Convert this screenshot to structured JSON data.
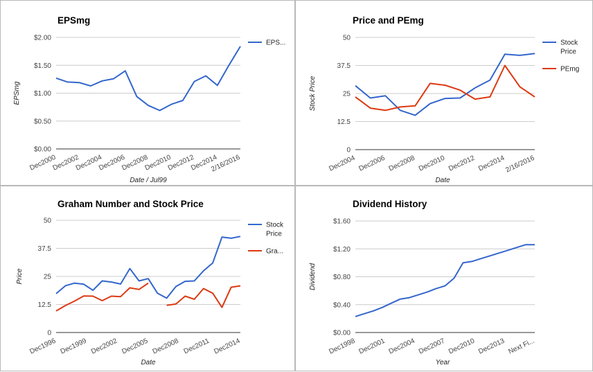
{
  "chart_data": [
    {
      "type": "line",
      "title": "EPSmg",
      "xlabel": "Date / Jul99",
      "ylabel": "EPSmg",
      "ylim": [
        0,
        2
      ],
      "yticks": [
        "$0.00",
        "$0.50",
        "$1.00",
        "$1.50",
        "$2.00"
      ],
      "x_tick_labels": [
        "Dec2000",
        "Dec2002",
        "Dec2004",
        "Dec2006",
        "Dec2008",
        "Dec2010",
        "Dec2012",
        "Dec2014",
        "2/16/2016"
      ],
      "grid": true,
      "legend_position": "right",
      "series": [
        {
          "name": "EPS...",
          "color": "#3366cc",
          "values": [
            1.27,
            1.2,
            1.19,
            1.13,
            1.22,
            1.26,
            1.4,
            0.94,
            0.78,
            0.69,
            0.8,
            0.87,
            1.21,
            1.31,
            1.14,
            1.5,
            1.84
          ]
        }
      ]
    },
    {
      "type": "line",
      "title": "Price and PEmg",
      "xlabel": "Date",
      "ylabel": "Stock Price",
      "ylim": [
        0,
        50
      ],
      "yticks": [
        "0",
        "12.5",
        "25",
        "37.5",
        "50"
      ],
      "x_tick_labels": [
        "Dec2004",
        "Dec2006",
        "Dec2008",
        "Dec2010",
        "Dec2012",
        "Dec2014",
        "2/16/2016"
      ],
      "grid": true,
      "legend_position": "right",
      "series": [
        {
          "name": "Stock Price",
          "color": "#3366cc",
          "values": [
            28.5,
            23.0,
            24.0,
            17.5,
            15.3,
            20.5,
            22.8,
            23.0,
            27.5,
            31.0,
            42.5,
            42.0,
            42.8
          ]
        },
        {
          "name": "PEmg",
          "color": "#dc3912",
          "values": [
            23.5,
            18.5,
            17.5,
            19.0,
            19.5,
            29.5,
            28.7,
            26.5,
            22.5,
            23.5,
            37.5,
            28.0,
            23.5
          ]
        }
      ]
    },
    {
      "type": "line",
      "title": "Graham Number and Stock Price",
      "xlabel": "Date",
      "ylabel": "Price",
      "ylim": [
        0,
        50
      ],
      "yticks": [
        "0",
        "12.5",
        "25",
        "37.5",
        "50"
      ],
      "x_tick_labels": [
        "Dec1996",
        "Dec1999",
        "Dec2002",
        "Dec2005",
        "Dec2008",
        "Dec2011",
        "Dec2014"
      ],
      "grid": true,
      "legend_position": "right",
      "series": [
        {
          "name": "Stock Price",
          "color": "#3366cc",
          "values": [
            17.3,
            20.8,
            22.0,
            21.5,
            18.8,
            23.0,
            22.5,
            21.6,
            28.5,
            23.0,
            24.0,
            17.5,
            15.3,
            20.5,
            22.8,
            23.0,
            27.5,
            31.0,
            42.5,
            42.0,
            42.8
          ]
        },
        {
          "name": "Gra...",
          "color": "#dc3912",
          "values": [
            9.6,
            12.0,
            14.0,
            16.3,
            16.2,
            14.2,
            16.2,
            16.0,
            19.9,
            19.2,
            22.0,
            null,
            12.1,
            12.7,
            16.2,
            14.8,
            19.6,
            17.5,
            11.2,
            20.2,
            20.8
          ]
        }
      ]
    },
    {
      "type": "line",
      "title": "Dividend History",
      "xlabel": "Year",
      "ylabel": "Dividend",
      "ylim": [
        0,
        1.6
      ],
      "yticks": [
        "$0.00",
        "$0.40",
        "$0.80",
        "$1.20",
        "$1.60"
      ],
      "x_tick_labels": [
        "Dec1998",
        "Dec2001",
        "Dec2004",
        "Dec2007",
        "Dec2010",
        "Dec2013",
        "Next Fi..."
      ],
      "grid": true,
      "legend_position": "none",
      "series": [
        {
          "name": "",
          "color": "#3366cc",
          "values": [
            0.23,
            0.27,
            0.31,
            0.36,
            0.42,
            0.48,
            0.5,
            0.54,
            0.58,
            0.63,
            0.67,
            0.78,
            1.0,
            1.02,
            1.06,
            1.1,
            1.14,
            1.18,
            1.22,
            1.26,
            1.26
          ]
        }
      ]
    }
  ]
}
